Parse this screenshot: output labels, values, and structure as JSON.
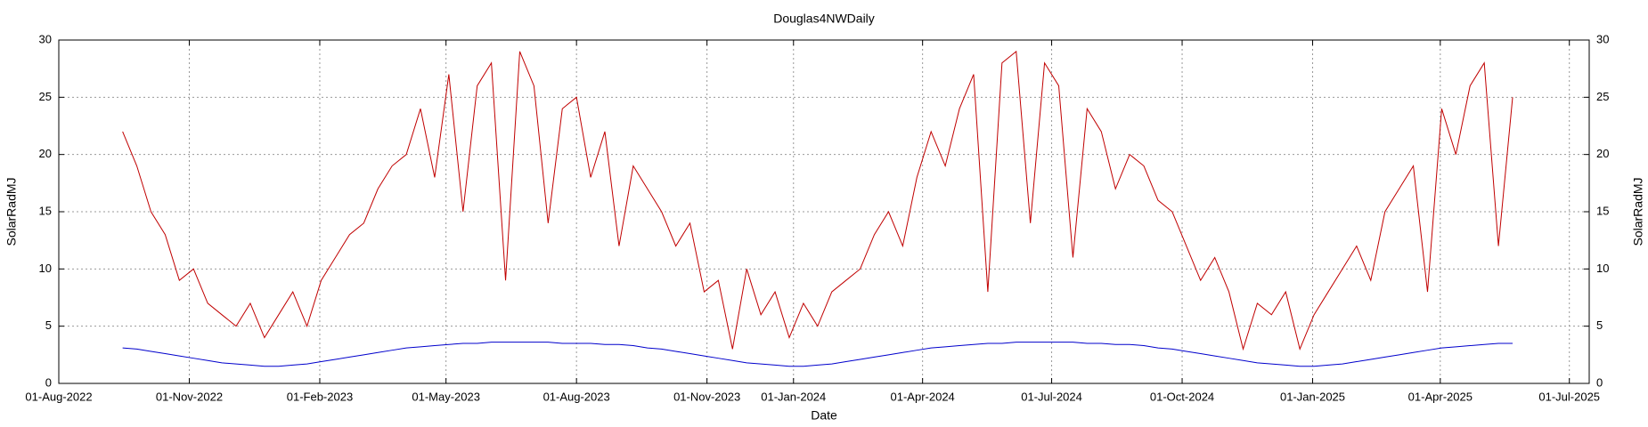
{
  "chart_data": {
    "type": "line",
    "title": "Douglas4NWDaily",
    "xlabel": "Date",
    "ylabel": "SolarRadMJ",
    "y2label": "SolarRadMJ",
    "grid": true,
    "xlim": [
      "2022-08-01",
      "2025-07-15"
    ],
    "xticks": [
      {
        "value": "2022-08-01",
        "label": "01-Aug-2022"
      },
      {
        "value": "2022-11-01",
        "label": "01-Nov-2022"
      },
      {
        "value": "2023-02-01",
        "label": "01-Feb-2023"
      },
      {
        "value": "2023-05-01",
        "label": "01-May-2023"
      },
      {
        "value": "2023-08-01",
        "label": "01-Aug-2023"
      },
      {
        "value": "2023-11-01",
        "label": "01-Nov-2023"
      },
      {
        "value": "2024-01-01",
        "label": "01-Jan-2024"
      },
      {
        "value": "2024-04-01",
        "label": "01-Apr-2024"
      },
      {
        "value": "2024-07-01",
        "label": "01-Jul-2024"
      },
      {
        "value": "2024-10-01",
        "label": "01-Oct-2024"
      },
      {
        "value": "2025-01-01",
        "label": "01-Jan-2025"
      },
      {
        "value": "2025-04-01",
        "label": "01-Apr-2025"
      },
      {
        "value": "2025-07-01",
        "label": "01-Jul-2025"
      }
    ],
    "ylim": [
      0,
      30
    ],
    "yticks": [
      0,
      5,
      10,
      15,
      20,
      25,
      30
    ],
    "y2lim": [
      0,
      30
    ],
    "y2ticks": [
      0,
      5,
      10,
      15,
      20,
      25,
      30
    ],
    "x": [
      "2022-09-15",
      "2022-09-25",
      "2022-10-05",
      "2022-10-15",
      "2022-10-25",
      "2022-11-04",
      "2022-11-14",
      "2022-11-24",
      "2022-12-04",
      "2022-12-14",
      "2022-12-24",
      "2023-01-03",
      "2023-01-13",
      "2023-01-23",
      "2023-02-02",
      "2023-02-12",
      "2023-02-22",
      "2023-03-04",
      "2023-03-14",
      "2023-03-24",
      "2023-04-03",
      "2023-04-13",
      "2023-04-23",
      "2023-05-03",
      "2023-05-13",
      "2023-05-23",
      "2023-06-02",
      "2023-06-12",
      "2023-06-22",
      "2023-07-02",
      "2023-07-12",
      "2023-07-22",
      "2023-08-01",
      "2023-08-11",
      "2023-08-21",
      "2023-08-31",
      "2023-09-10",
      "2023-09-20",
      "2023-09-30",
      "2023-10-10",
      "2023-10-20",
      "2023-10-30",
      "2023-11-09",
      "2023-11-19",
      "2023-11-29",
      "2023-12-09",
      "2023-12-19",
      "2023-12-29",
      "2024-01-08",
      "2024-01-18",
      "2024-01-28",
      "2024-02-07",
      "2024-02-17",
      "2024-02-27",
      "2024-03-08",
      "2024-03-18",
      "2024-03-28",
      "2024-04-07",
      "2024-04-17",
      "2024-04-27",
      "2024-05-07",
      "2024-05-17",
      "2024-05-27",
      "2024-06-06",
      "2024-06-16",
      "2024-06-26",
      "2024-07-06",
      "2024-07-16",
      "2024-07-26",
      "2024-08-05",
      "2024-08-15",
      "2024-08-25",
      "2024-09-04",
      "2024-09-14",
      "2024-09-24",
      "2024-10-04",
      "2024-10-14",
      "2024-10-24",
      "2024-11-03",
      "2024-11-13",
      "2024-11-23",
      "2024-12-03",
      "2024-12-13",
      "2024-12-23",
      "2025-01-02",
      "2025-01-12",
      "2025-01-22",
      "2025-02-01",
      "2025-02-11",
      "2025-02-21",
      "2025-03-03",
      "2025-03-13",
      "2025-03-23",
      "2025-04-02",
      "2025-04-12",
      "2025-04-22",
      "2025-05-02",
      "2025-05-12",
      "2025-05-22"
    ],
    "series": [
      {
        "color": "#c00000",
        "values": [
          22,
          19,
          15,
          13,
          9,
          10,
          7,
          6,
          5,
          7,
          4,
          6,
          8,
          5,
          9,
          11,
          13,
          14,
          17,
          19,
          20,
          24,
          18,
          27,
          15,
          26,
          28,
          9,
          29,
          26,
          14,
          24,
          25,
          18,
          22,
          12,
          19,
          17,
          15,
          12,
          14,
          8,
          9,
          3,
          10,
          6,
          8,
          4,
          7,
          5,
          8,
          9,
          10,
          13,
          15,
          12,
          18,
          22,
          19,
          24,
          27,
          8,
          28,
          29,
          14,
          28,
          26,
          11,
          24,
          22,
          17,
          20,
          19,
          16,
          15,
          12,
          9,
          11,
          8,
          3,
          7,
          6,
          8,
          3,
          6,
          8,
          10,
          12,
          9,
          15,
          17,
          19,
          8,
          24,
          20,
          26,
          28,
          12,
          25
        ]
      },
      {
        "color": "#0000cc",
        "values": [
          3.1,
          3.0,
          2.8,
          2.6,
          2.4,
          2.2,
          2.0,
          1.8,
          1.7,
          1.6,
          1.5,
          1.5,
          1.6,
          1.7,
          1.9,
          2.1,
          2.3,
          2.5,
          2.7,
          2.9,
          3.1,
          3.2,
          3.3,
          3.4,
          3.5,
          3.5,
          3.6,
          3.6,
          3.6,
          3.6,
          3.6,
          3.5,
          3.5,
          3.5,
          3.4,
          3.4,
          3.3,
          3.1,
          3.0,
          2.8,
          2.6,
          2.4,
          2.2,
          2.0,
          1.8,
          1.7,
          1.6,
          1.5,
          1.5,
          1.6,
          1.7,
          1.9,
          2.1,
          2.3,
          2.5,
          2.7,
          2.9,
          3.1,
          3.2,
          3.3,
          3.4,
          3.5,
          3.5,
          3.6,
          3.6,
          3.6,
          3.6,
          3.6,
          3.5,
          3.5,
          3.4,
          3.4,
          3.3,
          3.1,
          3.0,
          2.8,
          2.6,
          2.4,
          2.2,
          2.0,
          1.8,
          1.7,
          1.6,
          1.5,
          1.5,
          1.6,
          1.7,
          1.9,
          2.1,
          2.3,
          2.5,
          2.7,
          2.9,
          3.1,
          3.2,
          3.3,
          3.4,
          3.5,
          3.5
        ]
      }
    ]
  }
}
